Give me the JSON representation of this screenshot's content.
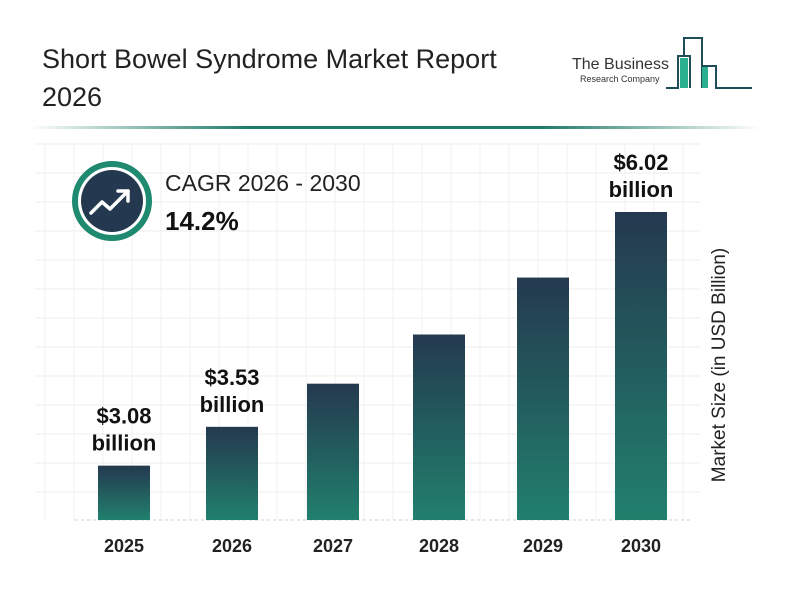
{
  "title": "Short Bowel Syndrome Market Report 2026",
  "logo": {
    "line1": "The Business",
    "line2": "Research Company",
    "colors": [
      "#1f4e5a",
      "#2bb08f"
    ]
  },
  "cagr": {
    "label": "CAGR 2026 - 2030",
    "value": "14.2%",
    "icon": "trending-up-icon"
  },
  "colors": {
    "bar_top": "#24394f",
    "bar_bottom": "#21806d",
    "ring": "#1f8a70",
    "icon_bg": "#24394f"
  },
  "chart_data": {
    "type": "bar",
    "title": "Short Bowel Syndrome Market Report 2026",
    "categories": [
      "2025",
      "2026",
      "2027",
      "2028",
      "2029",
      "2030"
    ],
    "values": [
      3.08,
      3.53,
      4.03,
      4.6,
      5.26,
      6.02
    ],
    "data_labels": [
      {
        "category": "2025",
        "line1": "$3.08",
        "line2": "billion"
      },
      {
        "category": "2026",
        "line1": "$3.53",
        "line2": "billion"
      },
      {
        "category": "2030",
        "line1": "$6.02",
        "line2": "billion"
      }
    ],
    "xlabel": "",
    "ylabel": "Market Size (in USD Billion)",
    "grid": true
  }
}
